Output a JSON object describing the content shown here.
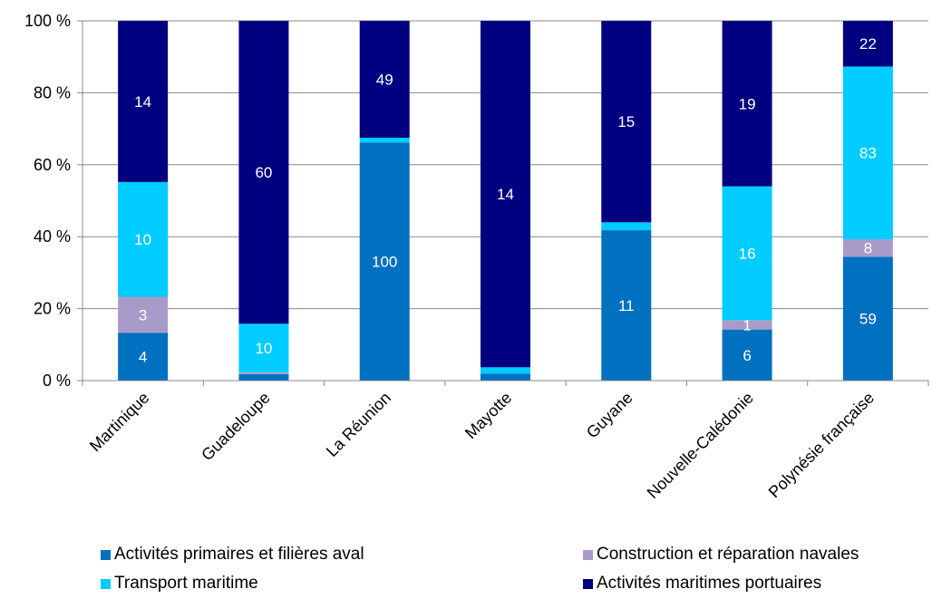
{
  "chart_data": {
    "type": "bar",
    "stacked": true,
    "percent": true,
    "title": "",
    "xlabel": "",
    "ylabel": "",
    "ylim": [
      0,
      100
    ],
    "y_ticks": [
      0,
      20,
      40,
      60,
      80,
      100
    ],
    "y_tick_labels": [
      "0 %",
      "20 %",
      "40 %",
      "60 %",
      "80 %",
      "100 %"
    ],
    "grid": "horizontal",
    "legend_position": "bottom",
    "categories": [
      "Martinique",
      "Guadeloupe",
      "La Réunion",
      "Mayotte",
      "Guyane",
      "Nouvelle-Calédonie",
      "Polynésie française"
    ],
    "series": [
      {
        "name": "Activités primaires et filières aval",
        "color": "#0070C0",
        "pct": [
          13.3,
          1.8,
          66.2,
          1.9,
          41.8,
          14.2,
          34.4
        ],
        "labels": [
          "4",
          "",
          "100",
          "",
          "11",
          "6",
          "59"
        ]
      },
      {
        "name": "Construction et réparation navales",
        "color": "#A99BC9",
        "pct": [
          10.0,
          0.5,
          0.0,
          0.0,
          0.0,
          2.6,
          4.9
        ],
        "labels": [
          "3",
          "",
          "",
          "",
          "",
          "1",
          "8"
        ]
      },
      {
        "name": "Transport maritime",
        "color": "#00CCFF",
        "pct": [
          31.9,
          13.5,
          1.3,
          1.8,
          2.2,
          37.2,
          48.0
        ],
        "labels": [
          "10",
          "10",
          "",
          "",
          "",
          "16",
          "83"
        ]
      },
      {
        "name": "Activités maritimes portuaires",
        "color": "#000080",
        "pct": [
          44.8,
          84.2,
          32.5,
          96.3,
          56.0,
          46.0,
          12.7
        ],
        "labels": [
          "14",
          "60",
          "49",
          "14",
          "15",
          "19",
          "22"
        ]
      }
    ]
  }
}
